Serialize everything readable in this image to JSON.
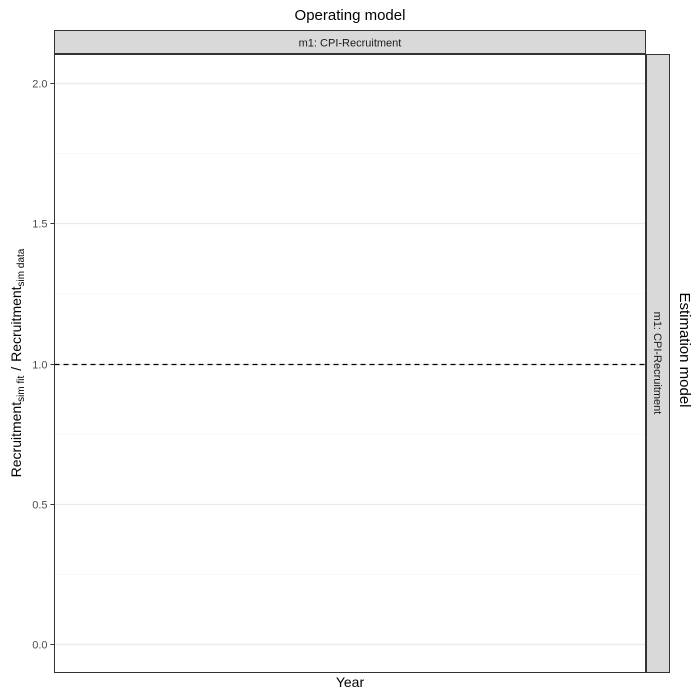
{
  "chart_data": {
    "type": "line",
    "title": "Operating model",
    "xlabel": "Year",
    "ylabel": {
      "numerator": "Recruitment",
      "numerator_sub": "sim fit",
      "separator": "/",
      "denominator": "Recruitment",
      "denominator_sub": "sim data"
    },
    "facet": {
      "col_title": "Operating model",
      "col_strip": "m1: CPI-Recruitment",
      "row_title": "Estimation model",
      "row_strip": "m1: CPI-Recruitment"
    },
    "ylim": [
      -0.1,
      2.1
    ],
    "y_ticks": [
      0.0,
      0.5,
      1.0,
      1.5,
      2.0
    ],
    "y_tick_labels": [
      "0.0",
      "0.5",
      "1.0",
      "1.5",
      "2.0"
    ],
    "y_minor_ticks": [
      0.25,
      0.75,
      1.25,
      1.75
    ],
    "x_ticks": [],
    "grid": true,
    "reference_line": {
      "y": 1.0,
      "style": "dashed"
    },
    "series": []
  }
}
